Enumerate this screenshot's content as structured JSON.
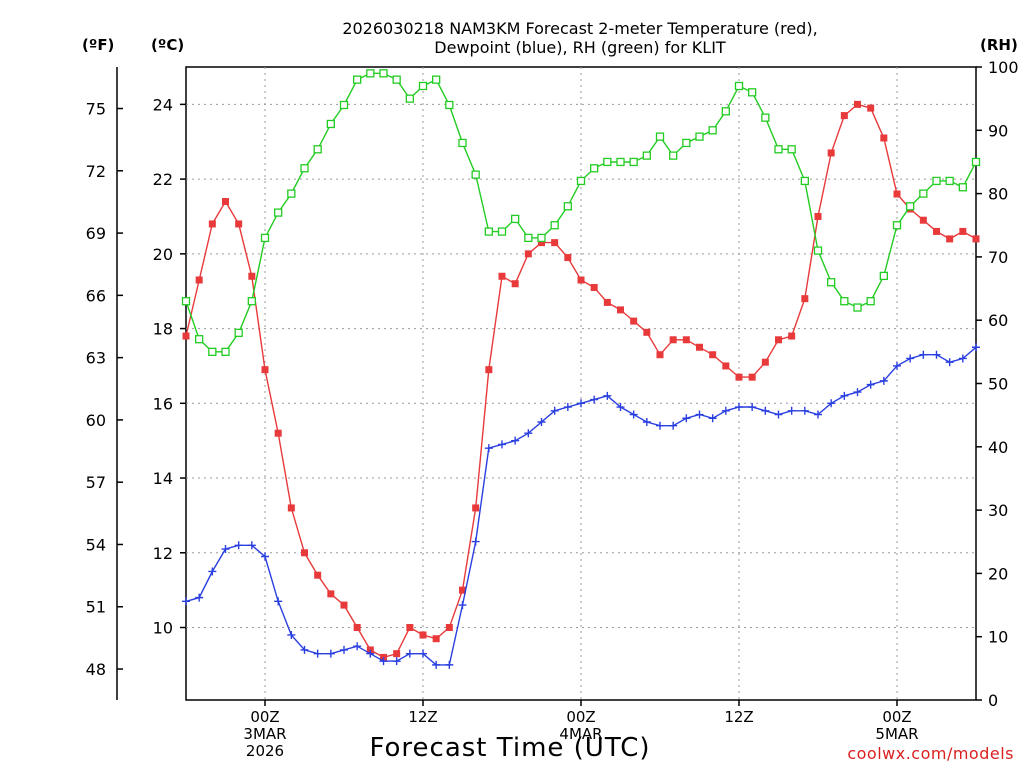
{
  "chart_data": {
    "type": "line",
    "title_line1": "2026030218 NAM3KM Forecast 2-meter Temperature (red),",
    "title_line2": "Dewpoint (blue), RH (green) for KLIT",
    "units": {
      "fahrenheit": "(ºF)",
      "celsius": "(ºC)",
      "rh": "(RH)"
    },
    "xlabel": "Forecast Time (UTC)",
    "credit": "coolwx.com/models",
    "x_range_hours": [
      0,
      60
    ],
    "celsius_range": [
      8.06,
      25.0
    ],
    "rh_range": [
      0,
      100
    ],
    "grid": true,
    "x_ticks": [
      {
        "hour": 6,
        "lines": [
          "00Z",
          "3MAR",
          "2026"
        ]
      },
      {
        "hour": 18,
        "lines": [
          "12Z"
        ]
      },
      {
        "hour": 30,
        "lines": [
          "00Z",
          "4MAR"
        ]
      },
      {
        "hour": 42,
        "lines": [
          "12Z"
        ]
      },
      {
        "hour": 54,
        "lines": [
          "00Z",
          "5MAR"
        ]
      }
    ],
    "celsius_ticks": [
      "10",
      "12",
      "14",
      "16",
      "18",
      "20",
      "22",
      "24"
    ],
    "fahrenheit_ticks": [
      "48",
      "51",
      "54",
      "57",
      "60",
      "63",
      "66",
      "69",
      "72",
      "75"
    ],
    "rh_ticks": [
      "0",
      "10",
      "20",
      "30",
      "40",
      "50",
      "60",
      "70",
      "80",
      "90",
      "100"
    ],
    "series": [
      {
        "name": "Temperature",
        "color": "#e8393b",
        "marker": "filled-square",
        "unit": "C",
        "values": [
          17.8,
          19.3,
          20.8,
          21.4,
          20.8,
          19.4,
          16.9,
          15.2,
          13.2,
          12.0,
          11.4,
          10.9,
          10.6,
          10.0,
          9.4,
          9.2,
          9.3,
          10.0,
          9.8,
          9.7,
          10.0,
          11.0,
          13.2,
          16.9,
          19.4,
          19.2,
          20.0,
          20.3,
          20.3,
          19.9,
          19.3,
          19.1,
          18.7,
          18.5,
          18.2,
          17.9,
          17.3,
          17.7,
          17.7,
          17.5,
          17.3,
          17.0,
          16.7,
          16.7,
          17.1,
          17.7,
          17.8,
          18.8,
          21.0,
          22.7,
          23.7,
          24.0,
          23.9,
          23.1,
          21.6,
          21.2,
          20.9,
          20.6,
          20.4,
          20.6,
          20.4
        ]
      },
      {
        "name": "Dewpoint",
        "color": "#2a3fe0",
        "marker": "plus",
        "unit": "C",
        "values": [
          10.7,
          10.8,
          11.5,
          12.1,
          12.2,
          12.2,
          11.9,
          10.7,
          9.8,
          9.4,
          9.3,
          9.3,
          9.4,
          9.5,
          9.3,
          9.1,
          9.1,
          9.3,
          9.3,
          9.0,
          9.0,
          10.6,
          12.3,
          14.8,
          14.9,
          15.0,
          15.2,
          15.5,
          15.8,
          15.9,
          16.0,
          16.1,
          16.2,
          15.9,
          15.7,
          15.5,
          15.4,
          15.4,
          15.6,
          15.7,
          15.6,
          15.8,
          15.9,
          15.9,
          15.8,
          15.7,
          15.8,
          15.8,
          15.7,
          16.0,
          16.2,
          16.3,
          16.5,
          16.6,
          17.0,
          17.2,
          17.3,
          17.3,
          17.1,
          17.2,
          17.5
        ]
      },
      {
        "name": "RH",
        "color": "#22cc22",
        "marker": "open-square",
        "unit": "%",
        "values": [
          63,
          57,
          55,
          55,
          58,
          63,
          73,
          77,
          80,
          84,
          87,
          91,
          94,
          98,
          99,
          99,
          98,
          95,
          97,
          98,
          94,
          88,
          83,
          74,
          74,
          76,
          73,
          73,
          75,
          78,
          82,
          84,
          85,
          85,
          85,
          86,
          89,
          86,
          88,
          89,
          90,
          93,
          97,
          96,
          92,
          87,
          87,
          82,
          71,
          66,
          63,
          62,
          63,
          67,
          75,
          78,
          80,
          82,
          82,
          81,
          85
        ]
      }
    ]
  }
}
